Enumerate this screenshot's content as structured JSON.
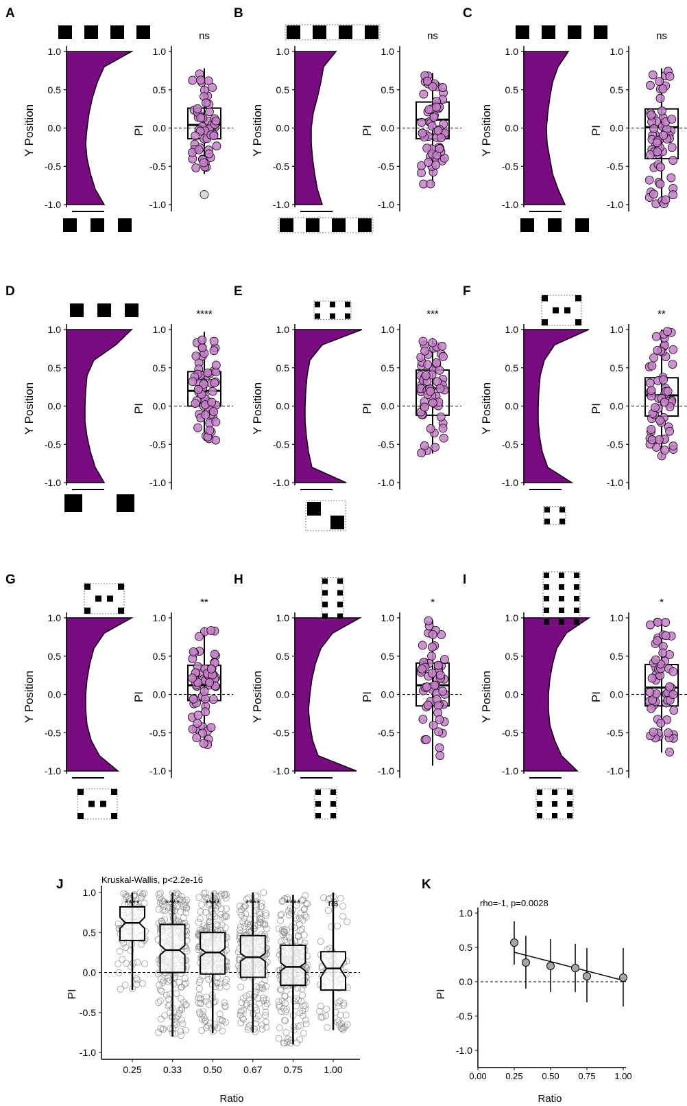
{
  "colors": {
    "density_fill": "#7a0a82",
    "point_fill": "#c57ec9",
    "outlier_fill": "#d9d9d9",
    "gray_point_fill": "#c9c9c9",
    "gray_point_stroke": "#8c8c8c",
    "k_point_fill": "#a6a6a6",
    "pattern_fill": "#000000"
  },
  "axis_common": {
    "y_position_label": "Y Position",
    "pi_label": "PI",
    "y_ticks": [
      "1.0",
      "0.5",
      "0.0",
      "-0.5",
      "-1.0"
    ]
  },
  "panels": [
    {
      "letter": "A",
      "sig": "ns",
      "pattern_top": {
        "type": "row",
        "n": 4,
        "dotted": false
      },
      "pattern_bottom": {
        "type": "row",
        "n": 3,
        "dotted": false
      },
      "pi_box": {
        "q1": -0.14,
        "median": 0.04,
        "q3": 0.26,
        "whisker_low": -0.6,
        "whisker_high": 0.78,
        "outliers": [
          -0.87
        ]
      },
      "density_profile": [
        0.95,
        0.55,
        0.45,
        0.38,
        0.33,
        0.3,
        0.28,
        0.3,
        0.35,
        0.42,
        0.55
      ]
    },
    {
      "letter": "B",
      "sig": "ns",
      "pattern_top": {
        "type": "row",
        "n": 4,
        "dotted": true
      },
      "pattern_bottom": {
        "type": "row",
        "n": 4,
        "dotted": true
      },
      "pi_box": {
        "q1": -0.14,
        "median": 0.11,
        "q3": 0.34,
        "whisker_low": -0.75,
        "whisker_high": 0.72,
        "outliers": []
      },
      "density_profile": [
        0.6,
        0.42,
        0.38,
        0.33,
        0.27,
        0.24,
        0.24,
        0.26,
        0.29,
        0.33,
        0.4
      ]
    },
    {
      "letter": "C",
      "sig": "ns",
      "pattern_top": {
        "type": "row",
        "n": 4,
        "dotted": false
      },
      "pattern_bottom": {
        "type": "row",
        "n": 3,
        "dotted": false
      },
      "pi_box": {
        "q1": -0.4,
        "median": 0.01,
        "q3": 0.25,
        "whisker_low": -1.0,
        "whisker_high": 0.78,
        "outliers": []
      },
      "density_profile": [
        0.65,
        0.5,
        0.42,
        0.38,
        0.35,
        0.33,
        0.34,
        0.38,
        0.42,
        0.5,
        0.6
      ]
    },
    {
      "letter": "D",
      "sig": "****",
      "pattern_top": {
        "type": "row",
        "n": 3,
        "dotted": false
      },
      "pattern_bottom": {
        "type": "row",
        "n": 2,
        "dotted": false
      },
      "pi_box": {
        "q1": 0.0,
        "median": 0.2,
        "q3": 0.45,
        "whisker_low": -0.45,
        "whisker_high": 0.97,
        "outliers": []
      },
      "density_profile": [
        0.95,
        0.72,
        0.4,
        0.3,
        0.28,
        0.27,
        0.27,
        0.3,
        0.35,
        0.42,
        0.55
      ]
    },
    {
      "letter": "E",
      "sig": "***",
      "pattern_top": {
        "type": "grid",
        "rows": 2,
        "cols": 3,
        "dotted": true
      },
      "pattern_bottom": {
        "type": "diagonal",
        "dotted": true
      },
      "pi_box": {
        "q1": -0.12,
        "median": 0.23,
        "q3": 0.47,
        "whisker_low": -0.62,
        "whisker_high": 0.89,
        "outliers": []
      },
      "density_profile": [
        0.98,
        0.4,
        0.22,
        0.18,
        0.16,
        0.15,
        0.15,
        0.17,
        0.2,
        0.25,
        0.75
      ]
    },
    {
      "letter": "F",
      "sig": "**",
      "pattern_top": {
        "type": "checker",
        "dotted": true
      },
      "pattern_bottom": {
        "type": "grid",
        "rows": 2,
        "cols": 2,
        "dotted": true
      },
      "pi_box": {
        "q1": -0.13,
        "median": 0.14,
        "q3": 0.37,
        "whisker_low": -0.68,
        "whisker_high": 1.0,
        "outliers": []
      },
      "density_profile": [
        0.95,
        0.45,
        0.3,
        0.24,
        0.22,
        0.21,
        0.21,
        0.23,
        0.27,
        0.35,
        0.7
      ]
    },
    {
      "letter": "G",
      "sig": "**",
      "pattern_top": {
        "type": "checker",
        "dotted": true
      },
      "pattern_bottom": {
        "type": "checker",
        "dotted": true
      },
      "pi_box": {
        "q1": -0.08,
        "median": 0.12,
        "q3": 0.38,
        "whisker_low": -0.66,
        "whisker_high": 0.88,
        "outliers": []
      },
      "density_profile": [
        0.95,
        0.55,
        0.4,
        0.34,
        0.3,
        0.28,
        0.28,
        0.3,
        0.36,
        0.48,
        0.75
      ]
    },
    {
      "letter": "H",
      "sig": "*",
      "pattern_top": {
        "type": "grid",
        "rows": 4,
        "cols": 2,
        "dotted": true
      },
      "pattern_bottom": {
        "type": "grid",
        "rows": 3,
        "cols": 2,
        "dotted": true
      },
      "pi_box": {
        "q1": -0.15,
        "median": 0.12,
        "q3": 0.41,
        "whisker_low": -0.93,
        "whisker_high": 0.97,
        "outliers": []
      },
      "density_profile": [
        0.95,
        0.55,
        0.38,
        0.3,
        0.25,
        0.22,
        0.2,
        0.22,
        0.26,
        0.34,
        0.9
      ]
    },
    {
      "letter": "I",
      "sig": "*",
      "pattern_top": {
        "type": "grid",
        "rows": 5,
        "cols": 3,
        "dotted": true
      },
      "pattern_bottom": {
        "type": "grid",
        "rows": 3,
        "cols": 3,
        "dotted": true
      },
      "pi_box": {
        "q1": -0.15,
        "median": 0.09,
        "q3": 0.39,
        "whisker_low": -0.76,
        "whisker_high": 0.97,
        "outliers": []
      },
      "density_profile": [
        0.95,
        0.62,
        0.48,
        0.42,
        0.38,
        0.36,
        0.36,
        0.38,
        0.45,
        0.55,
        0.78
      ]
    }
  ],
  "chart_data": [
    {
      "panel": "J",
      "type": "box",
      "title": "Kruskal-Wallis, p<2.2e-16",
      "xlabel": "Ratio",
      "ylabel": "PI",
      "categories": [
        "0.25",
        "0.33",
        "0.50",
        "0.67",
        "0.75",
        "1.00"
      ],
      "y_ticks": [
        "1.0",
        "0.5",
        "0.0",
        "-0.5",
        "-1.0"
      ],
      "ylim": [
        -1.1,
        1.1
      ],
      "significance": [
        "****",
        "****",
        "****",
        "****",
        "****",
        "ns"
      ],
      "boxes": [
        {
          "q1": 0.4,
          "median": 0.62,
          "q3": 0.82,
          "notch_low": 0.55,
          "notch_high": 0.69,
          "whisker_low": -0.22,
          "whisker_high": 1.0
        },
        {
          "q1": 0.0,
          "median": 0.28,
          "q3": 0.6,
          "notch_low": 0.22,
          "notch_high": 0.34,
          "whisker_low": -0.8,
          "whisker_high": 1.0
        },
        {
          "q1": -0.02,
          "median": 0.25,
          "q3": 0.5,
          "notch_low": 0.2,
          "notch_high": 0.3,
          "whisker_low": -0.76,
          "whisker_high": 1.0
        },
        {
          "q1": -0.06,
          "median": 0.19,
          "q3": 0.46,
          "notch_low": 0.14,
          "notch_high": 0.24,
          "whisker_low": -0.75,
          "whisker_high": 1.0
        },
        {
          "q1": -0.16,
          "median": 0.07,
          "q3": 0.34,
          "notch_low": 0.02,
          "notch_high": 0.12,
          "whisker_low": -0.9,
          "whisker_high": 0.97
        },
        {
          "q1": -0.22,
          "median": 0.05,
          "q3": 0.26,
          "notch_low": -0.06,
          "notch_high": 0.16,
          "whisker_low": -0.72,
          "whisker_high": 1.0
        }
      ]
    },
    {
      "panel": "K",
      "type": "scatter",
      "title": "rho=-1, p=0.0028",
      "xlabel": "Ratio",
      "ylabel": "PI",
      "x_ticks": [
        "0.00",
        "0.25",
        "0.50",
        "0.75",
        "1.00"
      ],
      "y_ticks": [
        "1.0",
        "0.5",
        "0.0",
        "-0.5",
        "-1.0"
      ],
      "xlim": [
        0,
        1
      ],
      "ylim": [
        -1.1,
        1.1
      ],
      "x": [
        0.25,
        0.33,
        0.5,
        0.67,
        0.75,
        1.0
      ],
      "y": [
        0.57,
        0.28,
        0.23,
        0.2,
        0.08,
        0.06
      ],
      "err_low": [
        0.25,
        -0.1,
        -0.15,
        -0.15,
        -0.3,
        -0.36
      ],
      "err_high": [
        0.88,
        0.67,
        0.62,
        0.55,
        0.49,
        0.49
      ],
      "trend": [
        {
          "x": 0.25,
          "y": 0.43
        },
        {
          "x": 1.0,
          "y": 0.02
        }
      ]
    }
  ]
}
